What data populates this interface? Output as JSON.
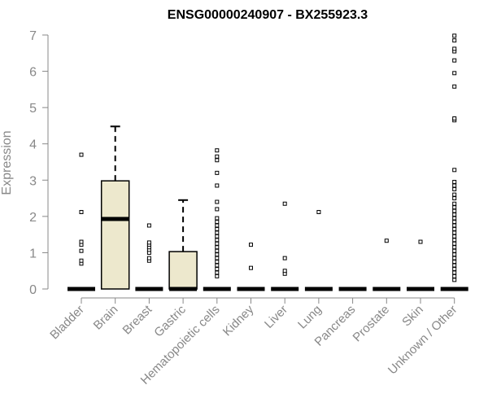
{
  "chart_data": {
    "type": "box",
    "title": "ENSG00000240907 - BX255923.3",
    "xlabel": "",
    "ylabel": "Expression",
    "ylim": [
      0,
      7
    ],
    "yticks": [
      0,
      1,
      2,
      3,
      4,
      5,
      6,
      7
    ],
    "box_fill": "#EDE8CD",
    "categories": [
      "Bladder",
      "Brain",
      "Breast",
      "Gastric",
      "Hematopoietic cells",
      "Kidney",
      "Liver",
      "Lung",
      "Pancreas",
      "Prostate",
      "Skin",
      "Unknown / Other"
    ],
    "boxes": [
      {
        "q1": 0,
        "median": 0,
        "q3": 0,
        "whisker_low": 0,
        "whisker_high": 0,
        "outliers": [
          0.7,
          0.78,
          1.05,
          1.22,
          1.3,
          2.12,
          3.7
        ]
      },
      {
        "q1": 0,
        "median": 1.93,
        "q3": 2.98,
        "whisker_low": 0,
        "whisker_high": 4.48,
        "outliers": []
      },
      {
        "q1": 0,
        "median": 0,
        "q3": 0,
        "whisker_low": 0,
        "whisker_high": 0,
        "outliers": [
          0.78,
          0.85,
          1.0,
          1.08,
          1.15,
          1.22,
          1.28,
          1.75
        ]
      },
      {
        "q1": 0,
        "median": 0,
        "q3": 1.03,
        "whisker_low": 0,
        "whisker_high": 2.45,
        "outliers": []
      },
      {
        "q1": 0,
        "median": 0,
        "q3": 0,
        "whisker_low": 0,
        "whisker_high": 0,
        "outliers": [
          0.35,
          0.45,
          0.55,
          0.65,
          0.75,
          0.85,
          0.95,
          1.05,
          1.15,
          1.25,
          1.35,
          1.45,
          1.55,
          1.65,
          1.75,
          1.85,
          1.95,
          2.2,
          2.4,
          2.85,
          3.2,
          3.55,
          3.65,
          3.82
        ]
      },
      {
        "q1": 0,
        "median": 0,
        "q3": 0,
        "whisker_low": 0,
        "whisker_high": 0,
        "outliers": [
          0.58,
          1.22
        ]
      },
      {
        "q1": 0,
        "median": 0,
        "q3": 0,
        "whisker_low": 0,
        "whisker_high": 0,
        "outliers": [
          0.42,
          0.5,
          0.85,
          2.35
        ]
      },
      {
        "q1": 0,
        "median": 0,
        "q3": 0,
        "whisker_low": 0,
        "whisker_high": 0,
        "outliers": [
          2.12
        ]
      },
      {
        "q1": 0,
        "median": 0,
        "q3": 0,
        "whisker_low": 0,
        "whisker_high": 0,
        "outliers": []
      },
      {
        "q1": 0,
        "median": 0,
        "q3": 0,
        "whisker_low": 0,
        "whisker_high": 0,
        "outliers": [
          1.33
        ]
      },
      {
        "q1": 0,
        "median": 0,
        "q3": 0,
        "whisker_low": 0,
        "whisker_high": 0,
        "outliers": [
          1.3
        ]
      },
      {
        "q1": 0,
        "median": 0,
        "q3": 0,
        "whisker_low": 0,
        "whisker_high": 0,
        "outliers": [
          0.25,
          0.35,
          0.45,
          0.55,
          0.65,
          0.75,
          0.85,
          0.95,
          1.05,
          1.15,
          1.25,
          1.35,
          1.45,
          1.55,
          1.65,
          1.75,
          1.85,
          1.95,
          2.05,
          2.15,
          2.25,
          2.35,
          2.5,
          2.6,
          2.75,
          2.85,
          2.95,
          3.28,
          4.65,
          4.7,
          5.58,
          5.95,
          6.3,
          6.55,
          6.62,
          6.85,
          6.98
        ]
      }
    ]
  }
}
